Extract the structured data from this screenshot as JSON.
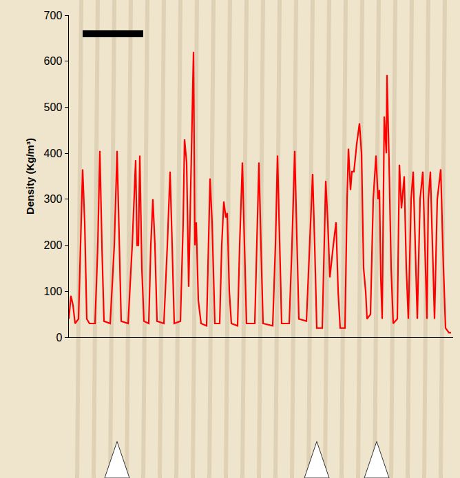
{
  "chart_data": {
    "type": "line",
    "y_label": "Density (Kg/m³)",
    "x": [
      0,
      3,
      6,
      9,
      14,
      17,
      20,
      23,
      26,
      30,
      38,
      42,
      45,
      48,
      51,
      60,
      66,
      70,
      73,
      76,
      86,
      92,
      97,
      99,
      101,
      103,
      106,
      109,
      116,
      119,
      122,
      125,
      128,
      138,
      143,
      147,
      150,
      153,
      162,
      166,
      168,
      171,
      174,
      177,
      181,
      183,
      185,
      188,
      192,
      200,
      203,
      205,
      208,
      212,
      219,
      222,
      225,
      228,
      230,
      233,
      236,
      245,
      248,
      252,
      255,
      258,
      270,
      273,
      276,
      279,
      282,
      296,
      300,
      303,
      306,
      309,
      320,
      324,
      328,
      331,
      334,
      345,
      350,
      354,
      357,
      360,
      368,
      371,
      373,
      376,
      379,
      384,
      388,
      391,
      394,
      401,
      404,
      406,
      409,
      411,
      414,
      418,
      422,
      425,
      428,
      431,
      433,
      438,
      442,
      446,
      449,
      451,
      453,
      455,
      458,
      461,
      462,
      465,
      468,
      471,
      477,
      480,
      483,
      487,
      490,
      493,
      497,
      500,
      503,
      506,
      510,
      514,
      517,
      520,
      522,
      525,
      528,
      531,
      535,
      540,
      544,
      547,
      552,
      555
    ],
    "values": [
      40,
      90,
      70,
      30,
      40,
      200,
      365,
      250,
      40,
      30,
      30,
      200,
      405,
      200,
      35,
      30,
      200,
      405,
      200,
      35,
      30,
      200,
      385,
      200,
      200,
      395,
      150,
      35,
      30,
      200,
      300,
      200,
      35,
      30,
      200,
      360,
      200,
      30,
      35,
      250,
      430,
      380,
      110,
      350,
      620,
      200,
      250,
      80,
      30,
      25,
      200,
      345,
      250,
      30,
      30,
      200,
      295,
      260,
      270,
      100,
      30,
      25,
      200,
      380,
      200,
      30,
      30,
      200,
      380,
      200,
      30,
      25,
      200,
      395,
      200,
      30,
      30,
      200,
      405,
      200,
      40,
      35,
      200,
      355,
      200,
      20,
      20,
      200,
      340,
      250,
      130,
      200,
      250,
      100,
      20,
      20,
      300,
      410,
      320,
      360,
      360,
      420,
      465,
      400,
      150,
      100,
      40,
      50,
      300,
      395,
      300,
      320,
      130,
      40,
      480,
      400,
      570,
      380,
      150,
      30,
      40,
      375,
      280,
      350,
      150,
      40,
      300,
      360,
      200,
      40,
      300,
      360,
      200,
      40,
      300,
      360,
      200,
      40,
      300,
      365,
      150,
      20,
      10,
      10
    ],
    "color": "#ff0000",
    "xlim": [
      0,
      558
    ],
    "ylim": [
      0,
      700
    ],
    "yticks": [
      0,
      100,
      200,
      300,
      400,
      500,
      600,
      700
    ],
    "tick_labels": "y",
    "grid": false
  }
}
